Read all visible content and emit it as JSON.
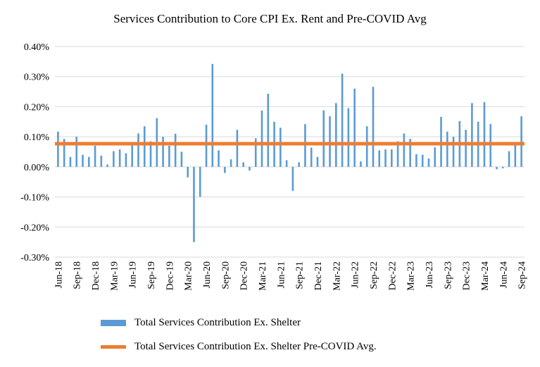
{
  "chart_data": {
    "type": "bar",
    "title": "Services Contribution to Core CPI Ex. Rent and Pre-COVID Avg",
    "xlabel": "",
    "ylabel": "",
    "ylim": [
      -0.3,
      0.4
    ],
    "ytick_values": [
      -0.3,
      -0.2,
      -0.1,
      0.0,
      0.1,
      0.2,
      0.3,
      0.4
    ],
    "ytick_labels": [
      "-0.30%",
      "-0.20%",
      "-0.10%",
      "0.00%",
      "0.10%",
      "0.20%",
      "0.30%",
      "0.40%"
    ],
    "tick_labels": [
      "Jun-18",
      "Sep-18",
      "Dec-18",
      "Mar-19",
      "Jun-19",
      "Sep-19",
      "Dec-19",
      "Mar-20",
      "Jun-20",
      "Sep-20",
      "Dec-20",
      "Mar-21",
      "Jun-21",
      "Sep-21",
      "Dec-21",
      "Mar-22",
      "Jun-22",
      "Sep-22",
      "Dec-22",
      "Mar-23",
      "Jun-23",
      "Sep-23",
      "Dec-23",
      "Mar-24",
      "Jun-24",
      "Sep-24"
    ],
    "categories": [
      "Jun-18",
      "Jul-18",
      "Aug-18",
      "Sep-18",
      "Oct-18",
      "Nov-18",
      "Dec-18",
      "Jan-19",
      "Feb-19",
      "Mar-19",
      "Apr-19",
      "May-19",
      "Jun-19",
      "Jul-19",
      "Aug-19",
      "Sep-19",
      "Oct-19",
      "Nov-19",
      "Dec-19",
      "Jan-20",
      "Feb-20",
      "Mar-20",
      "Apr-20",
      "May-20",
      "Jun-20",
      "Jul-20",
      "Aug-20",
      "Sep-20",
      "Oct-20",
      "Nov-20",
      "Dec-20",
      "Jan-21",
      "Feb-21",
      "Mar-21",
      "Apr-21",
      "May-21",
      "Jun-21",
      "Jul-21",
      "Aug-21",
      "Sep-21",
      "Oct-21",
      "Nov-21",
      "Dec-21",
      "Jan-22",
      "Feb-22",
      "Mar-22",
      "Apr-22",
      "May-22",
      "Jun-22",
      "Jul-22",
      "Aug-22",
      "Sep-22",
      "Oct-22",
      "Nov-22",
      "Dec-22",
      "Jan-23",
      "Feb-23",
      "Mar-23",
      "Apr-23",
      "May-23",
      "Jun-23",
      "Jul-23",
      "Aug-23",
      "Sep-23",
      "Oct-23",
      "Nov-23",
      "Dec-23",
      "Jan-24",
      "Feb-24",
      "Mar-24",
      "Apr-24",
      "May-24",
      "Jun-24",
      "Jul-24",
      "Aug-24",
      "Sep-24"
    ],
    "series": [
      {
        "name": "Total Services Contribution Ex. Shelter",
        "type": "bar",
        "color": "#5b9bd5",
        "values": [
          0.117,
          0.093,
          0.033,
          0.1,
          0.04,
          0.033,
          0.07,
          0.037,
          0.008,
          0.052,
          0.058,
          0.045,
          0.075,
          0.111,
          0.135,
          0.085,
          0.162,
          0.1,
          0.07,
          0.11,
          0.05,
          -0.035,
          -0.25,
          -0.1,
          0.14,
          0.342,
          0.055,
          -0.02,
          0.025,
          0.123,
          0.015,
          -0.012,
          0.095,
          0.187,
          0.243,
          0.15,
          0.13,
          0.022,
          -0.08,
          0.015,
          0.142,
          0.064,
          0.033,
          0.188,
          0.168,
          0.212,
          0.31,
          0.195,
          0.26,
          0.018,
          0.135,
          0.266,
          0.055,
          0.058,
          0.058,
          0.085,
          0.111,
          0.093,
          0.042,
          0.04,
          0.028,
          0.065,
          0.166,
          0.117,
          0.1,
          0.152,
          0.123,
          0.212,
          0.15,
          0.215,
          0.142,
          -0.008,
          -0.005,
          0.052,
          0.082,
          0.168
        ]
      },
      {
        "name": "Total Services Contribution Ex. Shelter Pre-COVID Avg.",
        "type": "line",
        "color": "#ed7d31",
        "value": 0.077
      }
    ],
    "grid": true,
    "legend": "bottom"
  }
}
